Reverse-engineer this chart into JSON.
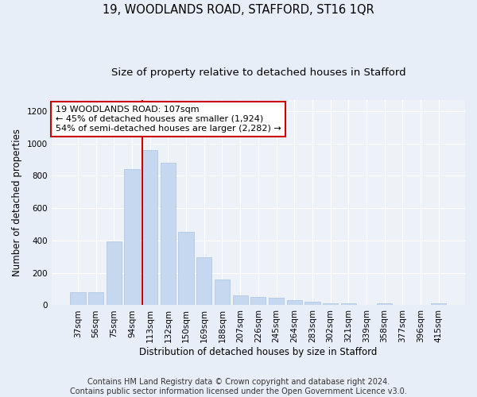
{
  "title": "19, WOODLANDS ROAD, STAFFORD, ST16 1QR",
  "subtitle": "Size of property relative to detached houses in Stafford",
  "xlabel": "Distribution of detached houses by size in Stafford",
  "ylabel": "Number of detached properties",
  "footer_line1": "Contains HM Land Registry data © Crown copyright and database right 2024.",
  "footer_line2": "Contains public sector information licensed under the Open Government Licence v3.0.",
  "annotation_line1": "19 WOODLANDS ROAD: 107sqm",
  "annotation_line2": "← 45% of detached houses are smaller (1,924)",
  "annotation_line3": "54% of semi-detached houses are larger (2,282) →",
  "bar_color": "#c5d8f0",
  "bar_edge_color": "#a8c4e0",
  "vline_color": "#cc0000",
  "vline_x_index": 4,
  "background_color": "#e8eef8",
  "plot_bg_color": "#edf1f8",
  "categories": [
    "37sqm",
    "56sqm",
    "75sqm",
    "94sqm",
    "113sqm",
    "132sqm",
    "150sqm",
    "169sqm",
    "188sqm",
    "207sqm",
    "226sqm",
    "245sqm",
    "264sqm",
    "283sqm",
    "302sqm",
    "321sqm",
    "339sqm",
    "358sqm",
    "377sqm",
    "396sqm",
    "415sqm"
  ],
  "values": [
    80,
    80,
    395,
    840,
    960,
    880,
    455,
    295,
    160,
    60,
    50,
    45,
    30,
    20,
    10,
    10,
    0,
    10,
    0,
    0,
    10
  ],
  "ylim": [
    0,
    1270
  ],
  "yticks": [
    0,
    200,
    400,
    600,
    800,
    1000,
    1200
  ],
  "grid_color": "#ffffff",
  "title_fontsize": 10.5,
  "subtitle_fontsize": 9.5,
  "axis_label_fontsize": 8.5,
  "tick_fontsize": 7.5,
  "footer_fontsize": 7,
  "annotation_fontsize": 8
}
